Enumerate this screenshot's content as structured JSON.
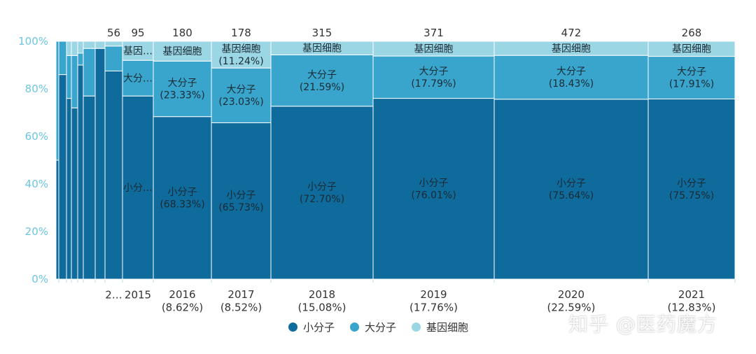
{
  "chart_data": {
    "type": "marimekko",
    "ylim": [
      0,
      100
    ],
    "y_ticks": [
      "0%",
      "20%",
      "40%",
      "60%",
      "80%",
      "100%"
    ],
    "grid": false,
    "legend_placement": "bottom",
    "series": [
      {
        "name": "小分子",
        "color": "#0f6b9c"
      },
      {
        "name": "大分子",
        "color": "#39a5cc"
      },
      {
        "name": "基因细胞",
        "color": "#9bd6e5"
      }
    ],
    "columns": [
      {
        "label": "",
        "total": "",
        "shares": [
          50,
          50,
          0
        ],
        "texts": [
          "",
          "",
          ""
        ]
      },
      {
        "label": "",
        "total": "",
        "shares": [
          86,
          14,
          0
        ],
        "texts": [
          "",
          "",
          ""
        ]
      },
      {
        "label": "",
        "total": "",
        "shares": [
          76,
          18,
          6
        ],
        "texts": [
          "",
          "",
          ""
        ]
      },
      {
        "label": "",
        "total": "",
        "shares": [
          72,
          22,
          6
        ],
        "texts": [
          "",
          "",
          ""
        ]
      },
      {
        "label": "",
        "total": "",
        "shares": [
          90,
          5,
          5
        ],
        "texts": [
          "",
          "",
          ""
        ]
      },
      {
        "label": "",
        "total": "",
        "shares": [
          77,
          20,
          3
        ],
        "texts": [
          "",
          "",
          ""
        ]
      },
      {
        "label": "",
        "total": "",
        "shares": [
          97,
          0,
          3
        ],
        "texts": [
          "",
          "",
          ""
        ]
      },
      {
        "label": "2…",
        "total": "56",
        "shares": [
          87.5,
          10.5,
          2
        ],
        "texts": [
          "",
          "",
          ""
        ]
      },
      {
        "label": "2015",
        "total": "95",
        "shares": [
          77,
          15,
          8
        ],
        "texts": [
          "小分…",
          "大分…",
          "基因…"
        ]
      },
      {
        "label": "2016\n(8.62%)",
        "total": "180",
        "shares": [
          68.33,
          23.33,
          8.34
        ],
        "texts": [
          "小分子\n(68.33%)",
          "大分子\n(23.33%)",
          "基因细胞"
        ]
      },
      {
        "label": "2017\n(8.52%)",
        "total": "178",
        "shares": [
          65.73,
          23.03,
          11.24
        ],
        "texts": [
          "小分子\n(65.73%)",
          "大分子\n(23.03%)",
          "基因细胞\n(11.24%)"
        ]
      },
      {
        "label": "2018\n(15.08%)",
        "total": "315",
        "shares": [
          72.7,
          21.59,
          5.71
        ],
        "texts": [
          "小分子\n(72.70%)",
          "大分子\n(21.59%)",
          "基因细胞"
        ]
      },
      {
        "label": "2019\n(17.76%)",
        "total": "371",
        "shares": [
          76.01,
          17.79,
          6.2
        ],
        "texts": [
          "小分子\n(76.01%)",
          "大分子\n(17.79%)",
          "基因细胞"
        ]
      },
      {
        "label": "2020\n(22.59%)",
        "total": "472",
        "shares": [
          75.64,
          18.43,
          5.93
        ],
        "texts": [
          "小分子\n(75.64%)",
          "大分子\n(18.43%)",
          "基因细胞"
        ]
      },
      {
        "label": "2021\n(12.83%)",
        "total": "268",
        "shares": [
          75.75,
          17.91,
          6.34
        ],
        "texts": [
          "小分子\n(75.75%)",
          "大分子\n(17.91%)",
          "基因细胞"
        ]
      }
    ]
  },
  "legend": [
    {
      "label": "小分子",
      "color": "#0f6b9c"
    },
    {
      "label": "大分子",
      "color": "#39a5cc"
    },
    {
      "label": "基因细胞",
      "color": "#9bd6e5"
    }
  ],
  "watermark": "知乎 @医药魔方"
}
